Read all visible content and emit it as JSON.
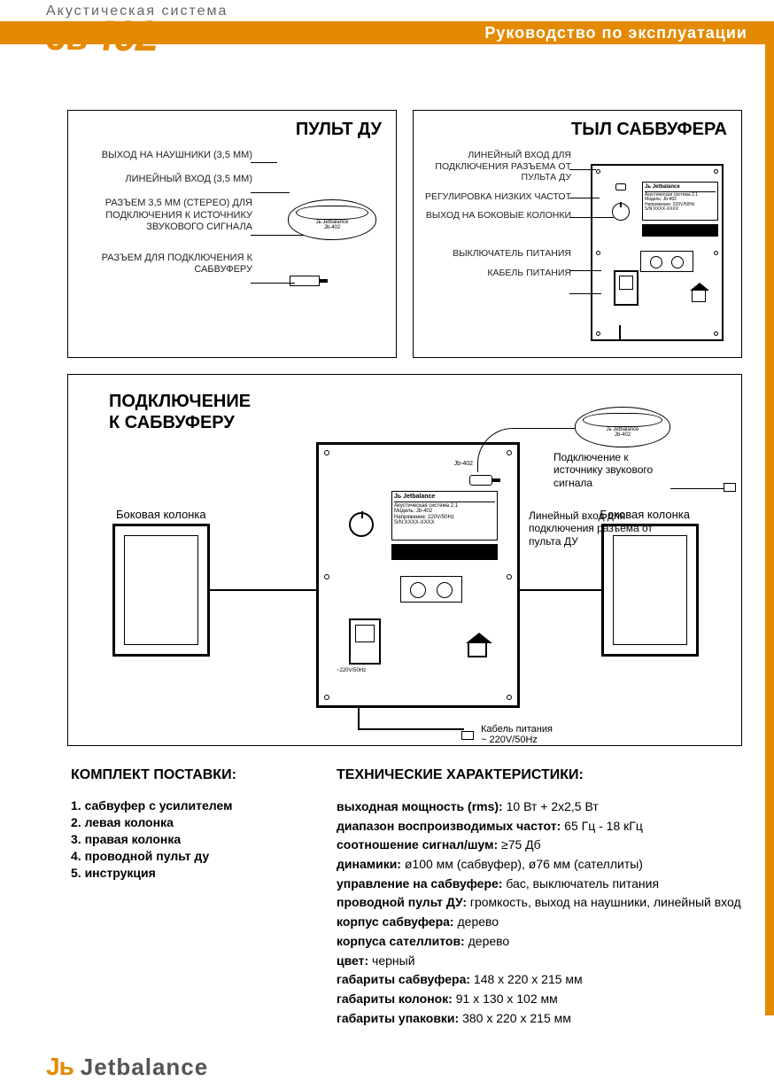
{
  "colors": {
    "accent": "#e48a00",
    "text": "#000000",
    "gray_text": "#666666",
    "footer_gray": "#555555",
    "white": "#ffffff"
  },
  "header": {
    "supertitle": "Акустическая система",
    "manual_title": "Руководство по эксплуатации",
    "logo_prefix": "Jь",
    "logo_model": "402"
  },
  "diag1": {
    "title": "ПУЛЬТ ДУ",
    "callouts": [
      "ВЫХОД НА НАУШНИКИ (3,5 ММ)",
      "ЛИНЕЙНЫЙ ВХОД (3,5 ММ)",
      "РАЗЪЕМ 3,5 ММ (СТЕРЕО) ДЛЯ ПОДКЛЮЧЕНИЯ К ИСТОЧНИКУ ЗВУКОВОГО СИГНАЛА",
      "РАЗЪЕМ ДЛЯ ПОДКЛЮЧЕНИЯ К САБВУФЕРУ"
    ],
    "puck_label": "Jь Jetbalance",
    "puck_model": "Jb-402"
  },
  "diag2": {
    "title": "ТЫЛ САБВУФЕРА",
    "callouts": [
      "ЛИНЕЙНЫЙ ВХОД ДЛЯ ПОДКЛЮЧЕНИЯ РАЗЪЕМА ОТ ПУЛЬТА ДУ",
      "РЕГУЛИРОВКА НИЗКИХ ЧАСТОТ",
      "ВЫХОД НА БОКОВЫЕ КОЛОНКИ",
      "ВЫКЛЮЧАТЕЛЬ ПИТАНИЯ",
      "КАБЕЛЬ ПИТАНИЯ"
    ],
    "plate": {
      "brand": "Jь Jetbalance",
      "line1": "Акустическая система 2.1",
      "line2": "Модель: Jb-402",
      "line3": "Напряжение: 220V/50Hz",
      "line4": "S/N:XXXX-XXXX"
    }
  },
  "big": {
    "title_l1": "ПОДКЛЮЧЕНИЕ",
    "title_l2": "К САБВУФЕРУ",
    "speaker_label": "Боковая колонка",
    "note1": "Подключение к источнику звукового сигнала",
    "note2": "Линейный вход для подключения разъема от пульта ДУ",
    "cord_l1": "Кабель питания",
    "cord_l2": "~ 220V/50Hz",
    "puck_label": "Jь Jetbalance",
    "puck_model": "Jb-402",
    "plate": {
      "brand": "Jь Jetbalance",
      "line1": "Акустическая система 2.1",
      "line2": "Модель: Jb-402",
      "line3": "Напряжение: 220V/50Hz",
      "line4": "S/N:XXXX-XXXX"
    },
    "sub_model": "Jb-402",
    "sw_label": "~220V/50Hz"
  },
  "package": {
    "heading": "КОМПЛЕКТ ПОСТАВКИ:",
    "items": [
      "1. сабвуфер с усилителем",
      "2. левая колонка",
      "3. правая колонка",
      "4. проводной пульт ду",
      "5. инструкция"
    ]
  },
  "specs": {
    "heading": "ТЕХНИЧЕСКИЕ ХАРАКТЕРИСТИКИ:",
    "rows": [
      {
        "k": "выходная мощность (rms):",
        "v": " 10 Вт + 2х2,5 Вт"
      },
      {
        "k": "диапазон воспроизводимых частот:",
        "v": " 65 Гц - 18 кГц"
      },
      {
        "k": "соотношение сигнал/шум:",
        "v": " ≥75 Дб"
      },
      {
        "k": "динамики:",
        "v": " ø100 мм (сабвуфер), ø76 мм (сателлиты)"
      },
      {
        "k": "управление на сабвуфере:",
        "v": " бас, выключатель питания"
      },
      {
        "k": "проводной пульт ДУ:",
        "v": " громкость, выход на наушники, линейный вход"
      },
      {
        "k": "корпус сабвуфера:",
        "v": " дерево"
      },
      {
        "k": "корпуса сателлитов:",
        "v": " дерево"
      },
      {
        "k": "цвет:",
        "v": " черный"
      },
      {
        "k": "габариты сабвуфера:",
        "v": " 148 х 220 х 215 мм"
      },
      {
        "k": "габариты колонок:",
        "v": "  91 х 130 х 102 мм"
      },
      {
        "k": "габариты упаковки:",
        "v": " 380 х 220 х 215 мм"
      }
    ]
  },
  "footer": {
    "prefix": "Jь",
    "brand": "Jetbalance"
  }
}
